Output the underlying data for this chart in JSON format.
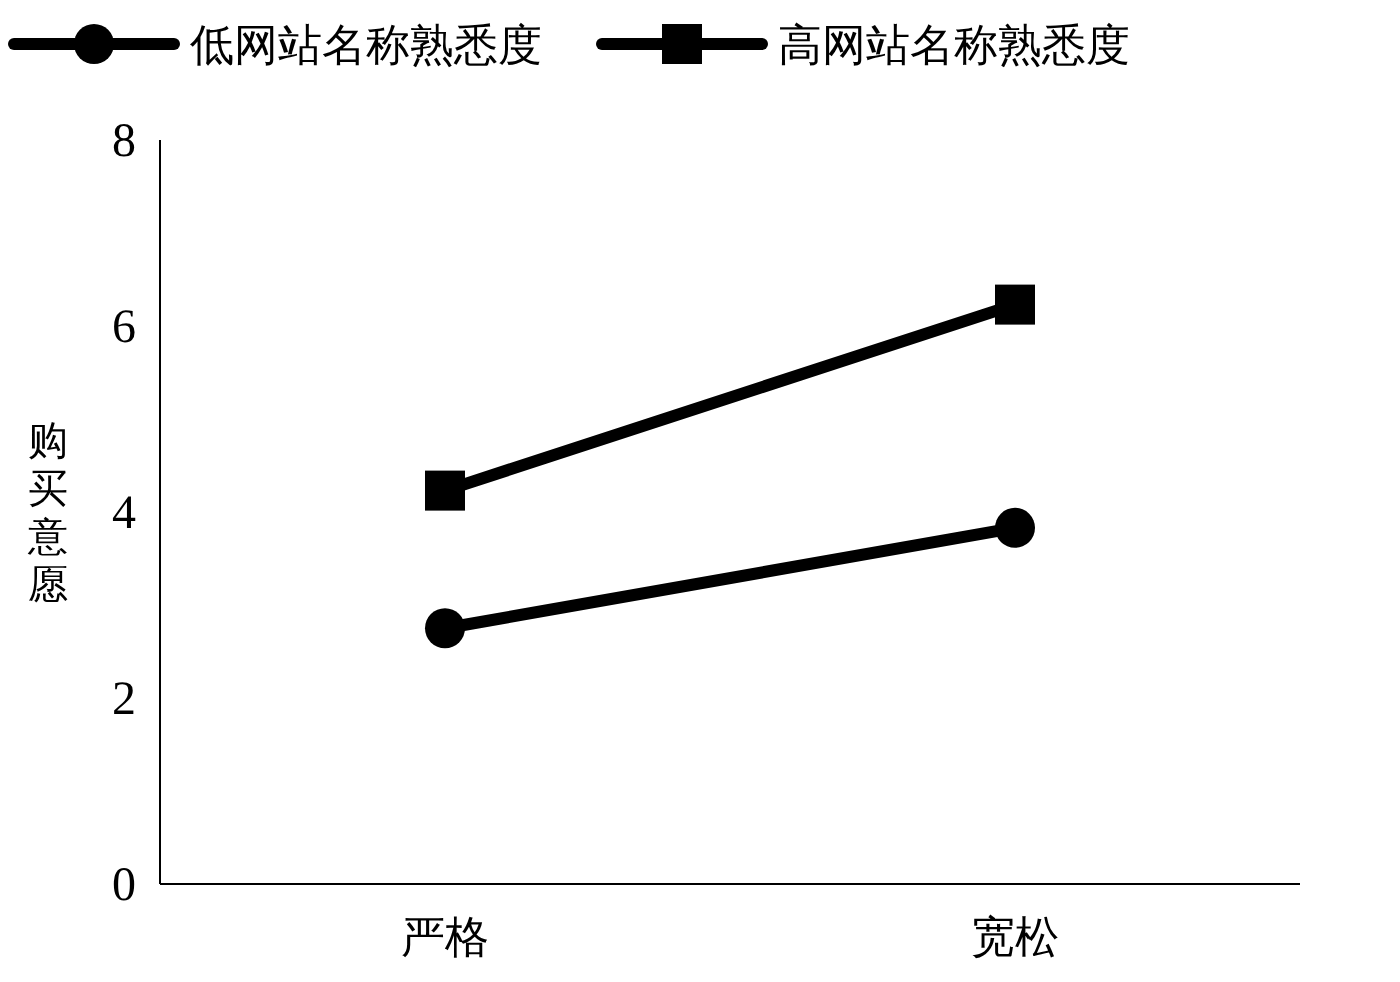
{
  "chart_data": {
    "type": "line",
    "ylabel": "购买意愿",
    "categories": [
      "严格",
      "宽松"
    ],
    "series": [
      {
        "name": "低网站名称熟悉度",
        "color": "#000000",
        "marker": "circle",
        "values": [
          2.75,
          3.83
        ]
      },
      {
        "name": "高网站名称熟悉度",
        "color": "#000000",
        "marker": "square",
        "values": [
          4.23,
          6.23
        ]
      }
    ],
    "ylim": [
      0,
      8
    ],
    "yticks": [
      0,
      2,
      4,
      6,
      8
    ],
    "legend": "top",
    "grid": false
  }
}
